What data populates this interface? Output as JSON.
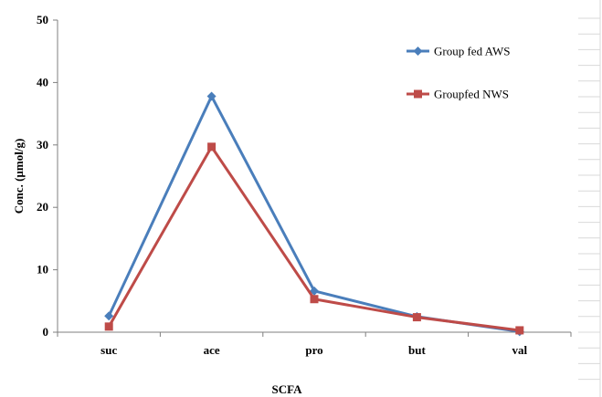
{
  "chart_data": {
    "type": "line",
    "title": "",
    "xlabel": "SCFA",
    "ylabel": "Conc. (µmol/g)",
    "categories": [
      "suc",
      "ace",
      "pro",
      "but",
      "val"
    ],
    "ylim": [
      0,
      50
    ],
    "yticks": [
      0,
      10,
      20,
      30,
      40,
      50
    ],
    "grid": false,
    "legend_position": "top-right",
    "series": [
      {
        "name": "Group fed AWS",
        "color": "#4A7EBB",
        "marker": "diamond",
        "values": [
          2.6,
          37.8,
          6.6,
          2.5,
          0.1
        ]
      },
      {
        "name": "Groupfed NWS",
        "color": "#BE4B48",
        "marker": "square",
        "values": [
          0.9,
          29.7,
          5.3,
          2.4,
          0.3
        ]
      }
    ]
  }
}
